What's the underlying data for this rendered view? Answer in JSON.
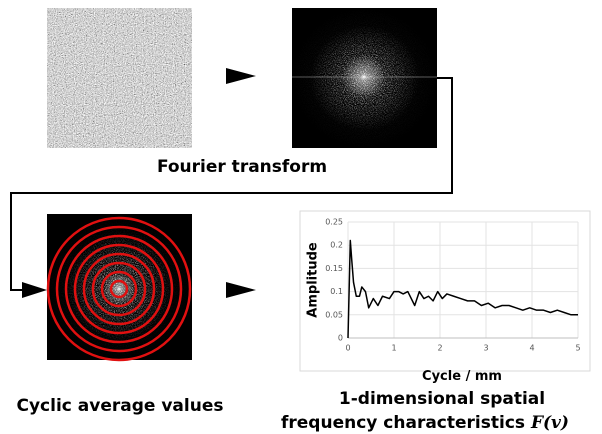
{
  "labels": {
    "fourier": "Fourier transform",
    "cyclic": "Cyclic average values",
    "result_line1": "1-dimensional spatial",
    "result_line2": "frequency characteristics",
    "formula": "F(v)"
  },
  "chart_data": {
    "type": "line",
    "ylabel": "Amplitude",
    "xlabel": "Cycle / mm",
    "x": [
      0,
      0.05,
      0.08,
      0.12,
      0.18,
      0.25,
      0.3,
      0.38,
      0.45,
      0.55,
      0.65,
      0.75,
      0.9,
      1.0,
      1.1,
      1.2,
      1.3,
      1.45,
      1.55,
      1.65,
      1.75,
      1.85,
      1.95,
      2.05,
      2.15,
      2.3,
      2.45,
      2.6,
      2.75,
      2.9,
      3.05,
      3.2,
      3.35,
      3.5,
      3.65,
      3.8,
      3.95,
      4.1,
      4.25,
      4.4,
      4.55,
      4.7,
      4.85,
      5.0
    ],
    "values": [
      0,
      0.21,
      0.17,
      0.12,
      0.09,
      0.09,
      0.11,
      0.1,
      0.065,
      0.085,
      0.07,
      0.09,
      0.085,
      0.1,
      0.1,
      0.095,
      0.1,
      0.07,
      0.1,
      0.085,
      0.09,
      0.08,
      0.1,
      0.085,
      0.095,
      0.09,
      0.085,
      0.08,
      0.08,
      0.07,
      0.075,
      0.065,
      0.07,
      0.07,
      0.065,
      0.06,
      0.065,
      0.06,
      0.06,
      0.055,
      0.06,
      0.055,
      0.05,
      0.05
    ],
    "color": "#000000",
    "xlim": [
      0,
      5
    ],
    "xticks": [
      0,
      1,
      2,
      3,
      4,
      5
    ],
    "ylim": [
      0,
      0.25
    ],
    "yticks": [
      0,
      0.05,
      0.1,
      0.15,
      0.2,
      0.25
    ],
    "grid": true
  }
}
